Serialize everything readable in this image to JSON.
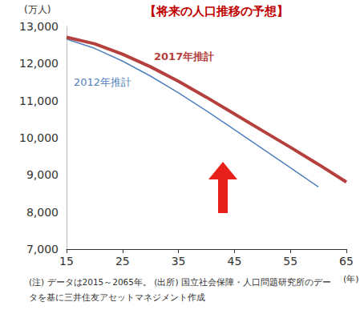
{
  "chart_data": {
    "type": "line",
    "title": "【将来の人口推移の予想】",
    "ylabel": "(万人)",
    "xlabel": "(年)",
    "note": "(注) データは2015～2065年。",
    "source": "(出所) 国立社会保障・人口問題研究所のデータを基に三井住友アセットマネジメント作成",
    "x": [
      15,
      20,
      25,
      30,
      35,
      40,
      45,
      50,
      55,
      60,
      65
    ],
    "series": [
      {
        "name": "2017年推計",
        "color": "#b5413e",
        "values": [
          12709,
          12533,
          12254,
          11913,
          11522,
          11092,
          10642,
          10192,
          9744,
          9284,
          8808
        ]
      },
      {
        "name": "2012年推計",
        "color": "#4f81bd",
        "values": [
          12660,
          12410,
          12066,
          11662,
          11212,
          10728,
          10221,
          9708,
          9193,
          8674,
          null
        ]
      }
    ],
    "xlim": [
      15,
      65
    ],
    "xticks": [
      15,
      25,
      35,
      45,
      55,
      65
    ],
    "ylim": [
      7000,
      13000
    ],
    "yticks": [
      {
        "value": 7000,
        "label": "7,000"
      },
      {
        "value": 8000,
        "label": "8,000"
      },
      {
        "value": 9000,
        "label": "9,000"
      },
      {
        "value": 10000,
        "label": "10,000"
      },
      {
        "value": 11000,
        "label": "11,000"
      },
      {
        "value": 12000,
        "label": "12,000"
      },
      {
        "value": 13000,
        "label": "13,000"
      }
    ],
    "grid": false
  }
}
